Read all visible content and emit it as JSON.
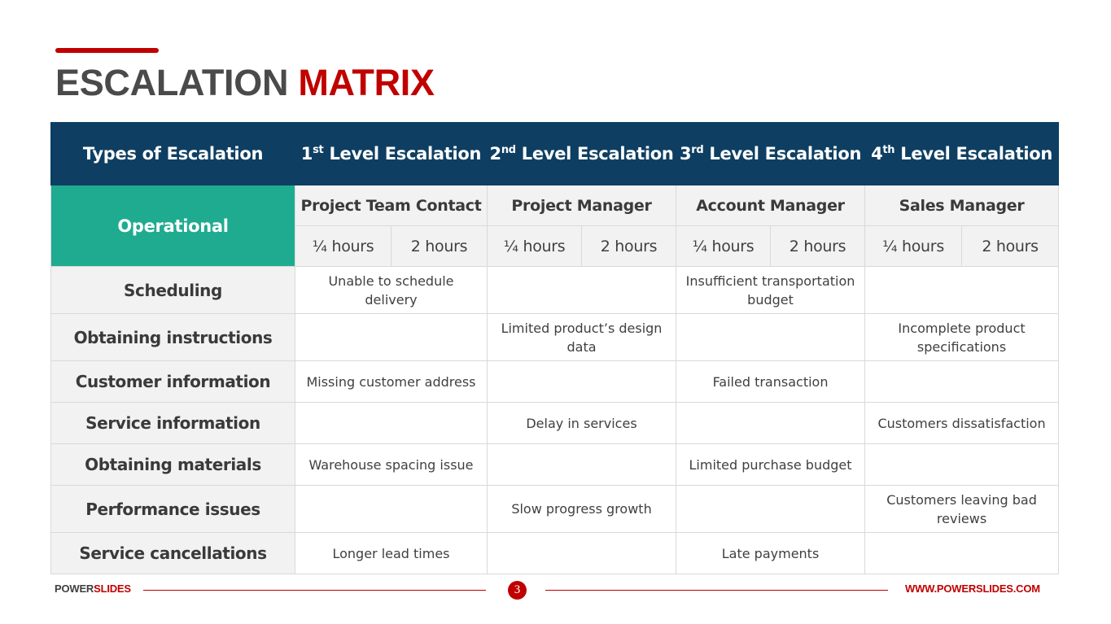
{
  "title": {
    "part1": "ESCALATION",
    "part2": "MATRIX"
  },
  "header": {
    "types_label": "Types of Escalation",
    "levels": [
      {
        "num": "1",
        "suffix": "st",
        "text": " Level Escalation"
      },
      {
        "num": "2",
        "suffix": "nd",
        "text": " Level Escalation"
      },
      {
        "num": "3",
        "suffix": "rd",
        "text": " Level Escalation"
      },
      {
        "num": "4",
        "suffix": "th",
        "text": " Level Escalation"
      }
    ]
  },
  "operational": {
    "label": "Operational",
    "roles": [
      "Project Team Contact",
      "Project Manager",
      "Account Manager",
      "Sales Manager"
    ],
    "hours": [
      "¼ hours",
      "2 hours",
      "¼ hours",
      "2 hours",
      "¼ hours",
      "2 hours",
      "¼ hours",
      "2 hours"
    ]
  },
  "rows": [
    {
      "label": "Scheduling",
      "cells": [
        "Unable to schedule delivery",
        "",
        "Insufficient transportation budget",
        ""
      ]
    },
    {
      "label": "Obtaining instructions",
      "cells": [
        "",
        "Limited product’s design data",
        "",
        "Incomplete product specifications"
      ]
    },
    {
      "label": "Customer information",
      "cells": [
        "Missing customer address",
        "",
        "Failed transaction",
        ""
      ]
    },
    {
      "label": "Service information",
      "cells": [
        "",
        "Delay in services",
        "",
        "Customers dissatisfaction"
      ]
    },
    {
      "label": "Obtaining materials",
      "cells": [
        "Warehouse spacing issue",
        "",
        "Limited purchase budget",
        ""
      ]
    },
    {
      "label": "Performance issues",
      "cells": [
        "",
        "Slow progress growth",
        "",
        "Customers leaving bad reviews"
      ]
    },
    {
      "label": "Service cancellations",
      "cells": [
        "Longer lead times",
        "",
        "Late payments",
        ""
      ]
    }
  ],
  "footer": {
    "brand1": "POWER",
    "brand2": "SLIDES",
    "page": "3",
    "url": "WWW.POWERSLIDES.COM"
  },
  "colors": {
    "accent": "#c00000",
    "header_bg": "#0e3f62",
    "operational_bg": "#1fab90",
    "label_bg": "#f2f2f2"
  }
}
